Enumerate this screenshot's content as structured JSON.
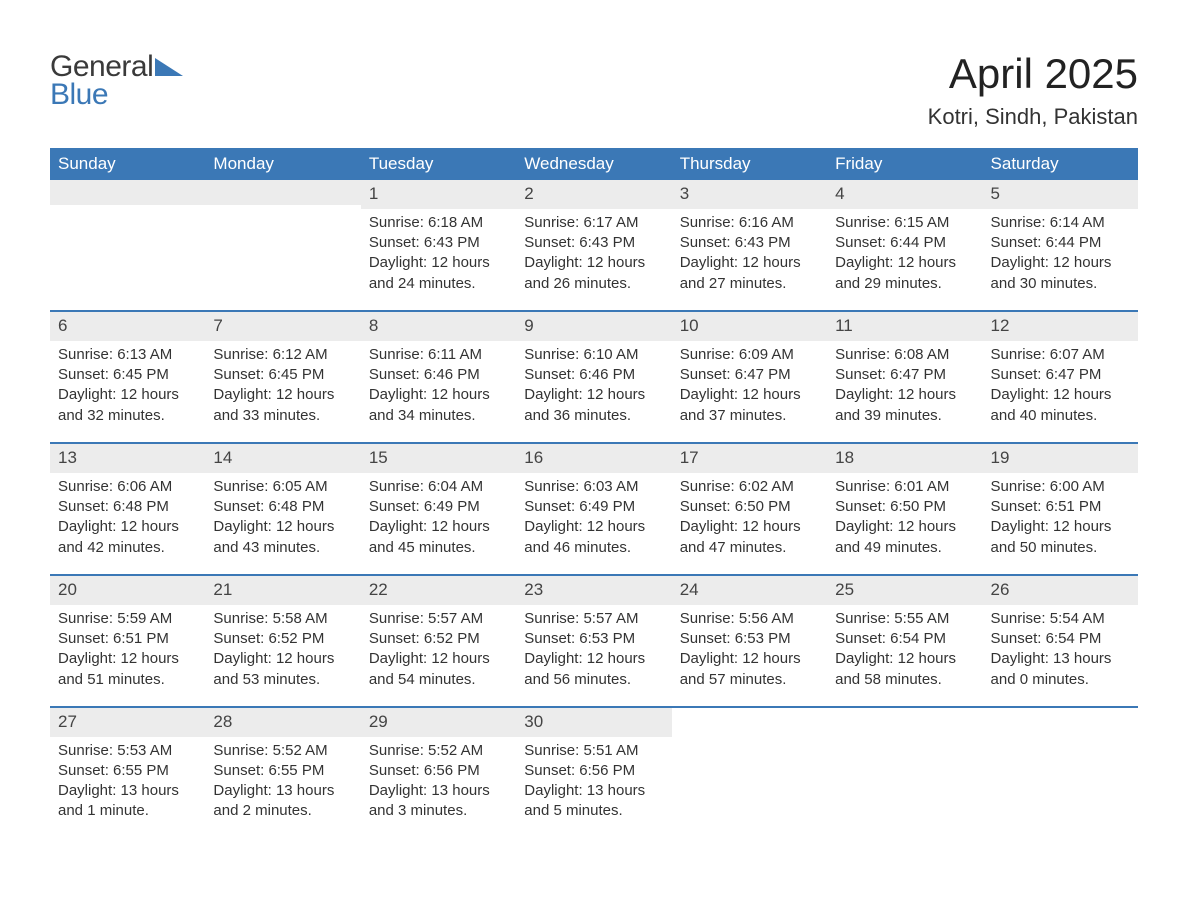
{
  "colors": {
    "brand_blue": "#3b78b6",
    "header_text": "#ffffff",
    "daynum_bg": "#ececec",
    "body_text": "#333333",
    "page_bg": "#ffffff",
    "week_divider": "#3b78b6"
  },
  "typography": {
    "title_fontsize": 42,
    "location_fontsize": 22,
    "dow_fontsize": 17,
    "daynum_fontsize": 17,
    "body_fontsize": 15,
    "logo_fontsize": 30,
    "font_family": "Arial"
  },
  "logo": {
    "word1": "General",
    "word2": "Blue"
  },
  "title": "April 2025",
  "location": "Kotri, Sindh, Pakistan",
  "calendar": {
    "type": "table",
    "columns": [
      "Sunday",
      "Monday",
      "Tuesday",
      "Wednesday",
      "Thursday",
      "Friday",
      "Saturday"
    ],
    "labels": {
      "sunrise": "Sunrise: ",
      "sunset": "Sunset: ",
      "daylight": "Daylight: "
    },
    "weeks": [
      [
        {
          "empty": true
        },
        {
          "empty": true
        },
        {
          "day": "1",
          "sunrise": "6:18 AM",
          "sunset": "6:43 PM",
          "daylight1": "12 hours",
          "daylight2": "and 24 minutes."
        },
        {
          "day": "2",
          "sunrise": "6:17 AM",
          "sunset": "6:43 PM",
          "daylight1": "12 hours",
          "daylight2": "and 26 minutes."
        },
        {
          "day": "3",
          "sunrise": "6:16 AM",
          "sunset": "6:43 PM",
          "daylight1": "12 hours",
          "daylight2": "and 27 minutes."
        },
        {
          "day": "4",
          "sunrise": "6:15 AM",
          "sunset": "6:44 PM",
          "daylight1": "12 hours",
          "daylight2": "and 29 minutes."
        },
        {
          "day": "5",
          "sunrise": "6:14 AM",
          "sunset": "6:44 PM",
          "daylight1": "12 hours",
          "daylight2": "and 30 minutes."
        }
      ],
      [
        {
          "day": "6",
          "sunrise": "6:13 AM",
          "sunset": "6:45 PM",
          "daylight1": "12 hours",
          "daylight2": "and 32 minutes."
        },
        {
          "day": "7",
          "sunrise": "6:12 AM",
          "sunset": "6:45 PM",
          "daylight1": "12 hours",
          "daylight2": "and 33 minutes."
        },
        {
          "day": "8",
          "sunrise": "6:11 AM",
          "sunset": "6:46 PM",
          "daylight1": "12 hours",
          "daylight2": "and 34 minutes."
        },
        {
          "day": "9",
          "sunrise": "6:10 AM",
          "sunset": "6:46 PM",
          "daylight1": "12 hours",
          "daylight2": "and 36 minutes."
        },
        {
          "day": "10",
          "sunrise": "6:09 AM",
          "sunset": "6:47 PM",
          "daylight1": "12 hours",
          "daylight2": "and 37 minutes."
        },
        {
          "day": "11",
          "sunrise": "6:08 AM",
          "sunset": "6:47 PM",
          "daylight1": "12 hours",
          "daylight2": "and 39 minutes."
        },
        {
          "day": "12",
          "sunrise": "6:07 AM",
          "sunset": "6:47 PM",
          "daylight1": "12 hours",
          "daylight2": "and 40 minutes."
        }
      ],
      [
        {
          "day": "13",
          "sunrise": "6:06 AM",
          "sunset": "6:48 PM",
          "daylight1": "12 hours",
          "daylight2": "and 42 minutes."
        },
        {
          "day": "14",
          "sunrise": "6:05 AM",
          "sunset": "6:48 PM",
          "daylight1": "12 hours",
          "daylight2": "and 43 minutes."
        },
        {
          "day": "15",
          "sunrise": "6:04 AM",
          "sunset": "6:49 PM",
          "daylight1": "12 hours",
          "daylight2": "and 45 minutes."
        },
        {
          "day": "16",
          "sunrise": "6:03 AM",
          "sunset": "6:49 PM",
          "daylight1": "12 hours",
          "daylight2": "and 46 minutes."
        },
        {
          "day": "17",
          "sunrise": "6:02 AM",
          "sunset": "6:50 PM",
          "daylight1": "12 hours",
          "daylight2": "and 47 minutes."
        },
        {
          "day": "18",
          "sunrise": "6:01 AM",
          "sunset": "6:50 PM",
          "daylight1": "12 hours",
          "daylight2": "and 49 minutes."
        },
        {
          "day": "19",
          "sunrise": "6:00 AM",
          "sunset": "6:51 PM",
          "daylight1": "12 hours",
          "daylight2": "and 50 minutes."
        }
      ],
      [
        {
          "day": "20",
          "sunrise": "5:59 AM",
          "sunset": "6:51 PM",
          "daylight1": "12 hours",
          "daylight2": "and 51 minutes."
        },
        {
          "day": "21",
          "sunrise": "5:58 AM",
          "sunset": "6:52 PM",
          "daylight1": "12 hours",
          "daylight2": "and 53 minutes."
        },
        {
          "day": "22",
          "sunrise": "5:57 AM",
          "sunset": "6:52 PM",
          "daylight1": "12 hours",
          "daylight2": "and 54 minutes."
        },
        {
          "day": "23",
          "sunrise": "5:57 AM",
          "sunset": "6:53 PM",
          "daylight1": "12 hours",
          "daylight2": "and 56 minutes."
        },
        {
          "day": "24",
          "sunrise": "5:56 AM",
          "sunset": "6:53 PM",
          "daylight1": "12 hours",
          "daylight2": "and 57 minutes."
        },
        {
          "day": "25",
          "sunrise": "5:55 AM",
          "sunset": "6:54 PM",
          "daylight1": "12 hours",
          "daylight2": "and 58 minutes."
        },
        {
          "day": "26",
          "sunrise": "5:54 AM",
          "sunset": "6:54 PM",
          "daylight1": "13 hours",
          "daylight2": "and 0 minutes."
        }
      ],
      [
        {
          "day": "27",
          "sunrise": "5:53 AM",
          "sunset": "6:55 PM",
          "daylight1": "13 hours",
          "daylight2": "and 1 minute."
        },
        {
          "day": "28",
          "sunrise": "5:52 AM",
          "sunset": "6:55 PM",
          "daylight1": "13 hours",
          "daylight2": "and 2 minutes."
        },
        {
          "day": "29",
          "sunrise": "5:52 AM",
          "sunset": "6:56 PM",
          "daylight1": "13 hours",
          "daylight2": "and 3 minutes."
        },
        {
          "day": "30",
          "sunrise": "5:51 AM",
          "sunset": "6:56 PM",
          "daylight1": "13 hours",
          "daylight2": "and 5 minutes."
        },
        {
          "empty": true,
          "blank": true
        },
        {
          "empty": true,
          "blank": true
        },
        {
          "empty": true,
          "blank": true
        }
      ]
    ]
  }
}
